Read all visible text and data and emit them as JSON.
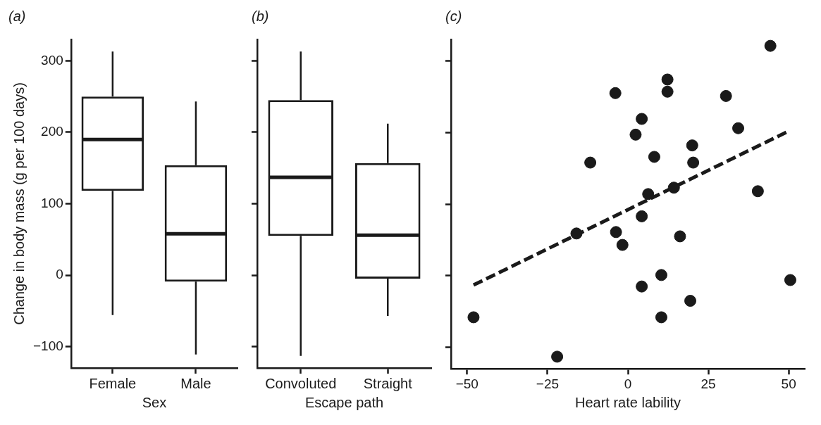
{
  "chart_data": [
    {
      "type": "box",
      "title": "(a)",
      "xlabel": "Sex",
      "ylabel": "Change in body mass (g per 100 days)",
      "categories": [
        "Female",
        "Male"
      ],
      "ylim": [
        -130,
        330
      ],
      "yticks": [
        -100,
        0,
        100,
        200,
        300
      ],
      "grid": false,
      "boxes": [
        {
          "low": -56,
          "q1": 118,
          "median": 190,
          "q3": 250,
          "high": 313
        },
        {
          "low": -111,
          "q1": -9,
          "median": 58,
          "q3": 154,
          "high": 243
        }
      ]
    },
    {
      "type": "box",
      "title": "(b)",
      "xlabel": "Escape path",
      "categories": [
        "Convoluted",
        "Straight"
      ],
      "ylim": [
        -130,
        330
      ],
      "yticks": [
        -100,
        0,
        100,
        200,
        300
      ],
      "grid": false,
      "tick_labels": "x",
      "boxes": [
        {
          "low": -113,
          "q1": 55,
          "median": 137,
          "q3": 245,
          "high": 313
        },
        {
          "low": -57,
          "q1": -5,
          "median": 56,
          "q3": 157,
          "high": 212
        }
      ]
    },
    {
      "type": "scatter",
      "title": "(c)",
      "xlabel": "Heart rate lability",
      "xlim": [
        -55,
        55
      ],
      "xticks": [
        -50,
        {
          "value": -25,
          "label": "−25"
        },
        0,
        25,
        50
      ],
      "ylim": [
        -130,
        330
      ],
      "yticks": [
        {
          "value": -100,
          "label": null
        },
        {
          "value": 0,
          "label": null
        },
        {
          "value": 100,
          "label": null
        },
        {
          "value": 200,
          "label": null
        },
        {
          "value": 300,
          "label": null
        }
      ],
      "grid": false,
      "tick_labels": "x",
      "marker": "circle",
      "series": [
        {
          "color": "#1a1a1a",
          "x": [
            -48,
            -22,
            -16,
            -11.7,
            -3.9,
            -3.7,
            -1.7,
            2.4,
            4.3,
            4.3,
            4.3,
            6.3,
            8.2,
            10.4,
            10.4,
            12.3,
            12.3,
            14.3,
            16.2,
            20,
            20.3,
            19.4,
            30.5,
            34.3,
            40.4,
            44.3,
            50.5
          ],
          "values": [
            -58,
            -113,
            59,
            158,
            255,
            61,
            43,
            197,
            219,
            83,
            -15,
            114,
            166,
            1,
            -58,
            274,
            257,
            123,
            55,
            182,
            158,
            -35,
            251,
            206,
            118,
            321,
            -6
          ]
        },
        {
          "type": "line",
          "color": "#1a1a1a",
          "line_style": "dashed",
          "marker": "none",
          "x": [
            -48,
            50
          ],
          "values": [
            -13,
            202
          ]
        }
      ]
    }
  ]
}
